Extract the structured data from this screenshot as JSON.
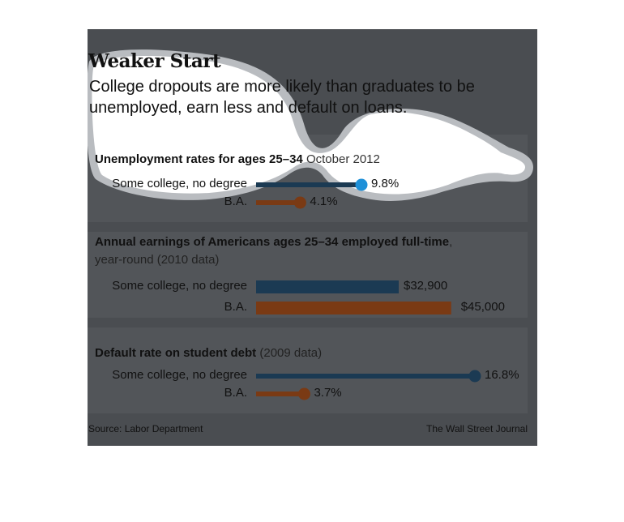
{
  "title": "Weaker Start",
  "subtitle": "College dropouts are more likely than graduates to be unemployed, earn less and default on loans.",
  "source": "Source: Labor Department",
  "brand": "The Wall Street Journal",
  "colors": {
    "card": "#4a4d51",
    "panel": "#525559",
    "some_college": "#1b3a53",
    "ba": "#7a3a14",
    "highlight_dot": "#1e90d8"
  },
  "chart_data": [
    {
      "type": "bar",
      "title_bold": "Unemployment rates for ages 25–34",
      "title_light": "October 2012",
      "categories": [
        "Some college, no degree",
        "B.A."
      ],
      "values": [
        9.8,
        4.1
      ],
      "value_labels": [
        "9.8%",
        "4.1%"
      ],
      "unit": "%"
    },
    {
      "type": "bar",
      "title_bold": "Annual earnings of Americans ages 25–34 employed full-time",
      "title_light": ",",
      "title_line2": "year-round (2010 data)",
      "categories": [
        "Some college, no degree",
        "B.A."
      ],
      "values": [
        32900,
        45000
      ],
      "value_labels": [
        "$32,900",
        "$45,000"
      ],
      "unit": "$"
    },
    {
      "type": "bar",
      "title_bold": "Default rate on student debt",
      "title_light": "(2009 data)",
      "categories": [
        "Some college, no degree",
        "B.A."
      ],
      "values": [
        16.8,
        3.7
      ],
      "value_labels": [
        "16.8%",
        "3.7%"
      ],
      "unit": "%"
    }
  ]
}
